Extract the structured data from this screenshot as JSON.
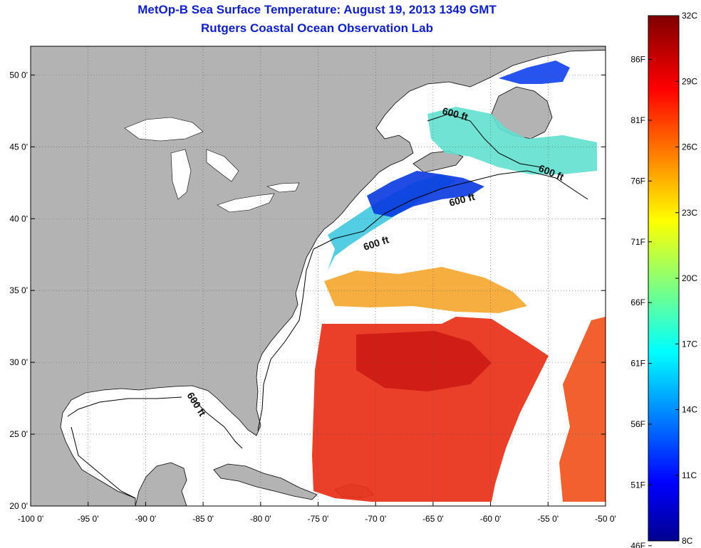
{
  "title": {
    "line1": "MetOp-B Sea Surface Temperature:  August 19, 2013 1349 GMT",
    "line2": "Rutgers Coastal Ocean Observation Lab"
  },
  "map": {
    "lon_range": [
      -100,
      -50
    ],
    "lat_range": [
      20,
      52
    ],
    "lon_ticks": [
      "-100 0'",
      "-95 0'",
      "-90 0'",
      "-85 0'",
      "-80 0'",
      "-75 0'",
      "-70 0'",
      "-65 0'",
      "-60 0'",
      "-55 0'",
      "-50 0'"
    ],
    "lat_ticks": [
      "20 0'",
      "25 0'",
      "30 0'",
      "35 0'",
      "40 0'",
      "45 0'",
      "50 0'"
    ],
    "land_color": "#b3b3b3",
    "ocean_color": "#ffffff",
    "contour_label": "600 ft"
  },
  "colorbar": {
    "celsius_ticks": [
      "8C",
      "11C",
      "14C",
      "17C",
      "20C",
      "23C",
      "26C",
      "29C",
      "32C"
    ],
    "fahrenheit_ticks": [
      "46F",
      "51F",
      "56F",
      "61F",
      "66F",
      "71F",
      "76F",
      "81F",
      "86F"
    ],
    "colormap": "jet"
  }
}
